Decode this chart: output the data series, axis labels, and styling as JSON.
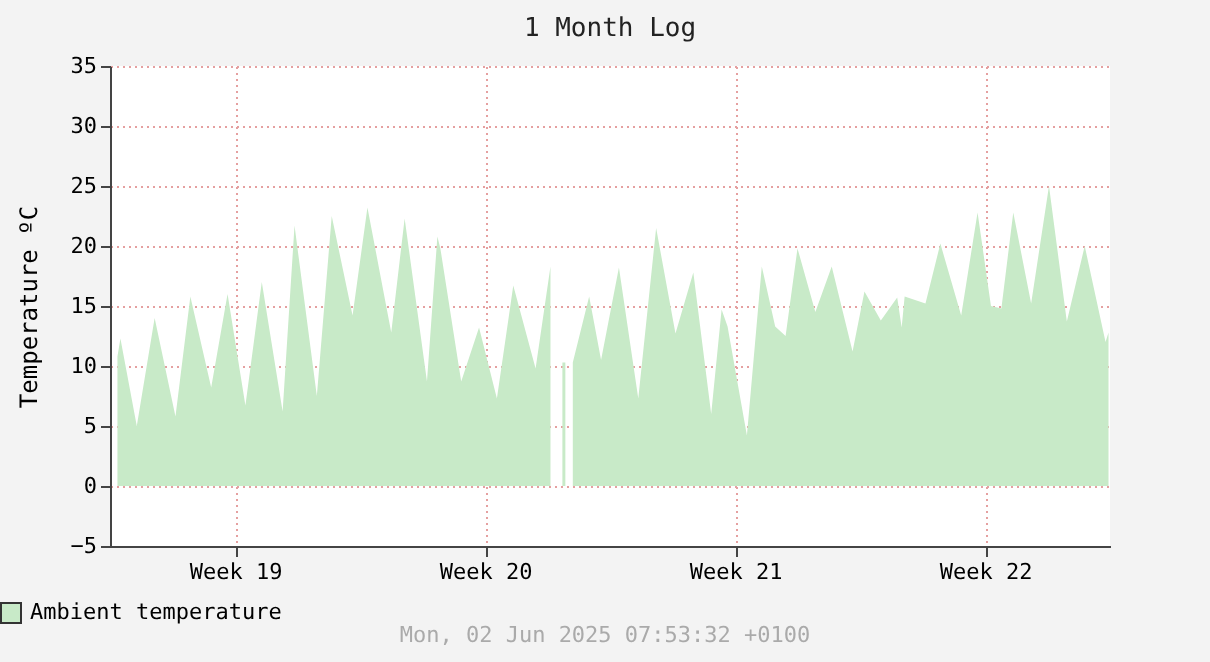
{
  "chart_data": {
    "type": "area",
    "title": "1 Month Log",
    "ylabel": "Temperature ºC",
    "annotations": [
      "Mon, 02 Jun 2025 07:53:32 +0100"
    ],
    "x": [
      "2025-05-05T05:00",
      "2025-05-05T07:00",
      "2025-05-05T18:00",
      "2025-05-06T06:00",
      "2025-05-06T20:00",
      "2025-05-07T06:00",
      "2025-05-07T20:00",
      "2025-05-08T07:00",
      "2025-05-08T19:00",
      "2025-05-09T06:00",
      "2025-05-09T20:00",
      "2025-05-10T04:00",
      "2025-05-10T19:00",
      "2025-05-11T05:00",
      "2025-05-11T19:00",
      "2025-05-12T05:00",
      "2025-05-12T21:00",
      "2025-05-13T06:00",
      "2025-05-13T21:00",
      "2025-05-14T04:00",
      "2025-05-14T06:00",
      "2025-05-14T20:00",
      "2025-05-15T08:00",
      "2025-05-15T20:00",
      "2025-05-16T07:00",
      "2025-05-16T22:00",
      "2025-05-17T08:00",
      "2025-05-17T12:00",
      "2025-05-17T16:00",
      "2025-05-17T18:00",
      "2025-05-17T19:00",
      "2025-05-17T23:00",
      "2025-05-18T10:00",
      "2025-05-18T18:00",
      "2025-05-19T06:00",
      "2025-05-19T19:00",
      "2025-05-20T07:00",
      "2025-05-20T20:00",
      "2025-05-21T08:00",
      "2025-05-21T20:00",
      "2025-05-22T03:00",
      "2025-05-22T07:00",
      "2025-05-22T20:00",
      "2025-05-23T06:00",
      "2025-05-23T15:00",
      "2025-05-23T22:00",
      "2025-05-24T06:00",
      "2025-05-24T18:00",
      "2025-05-25T05:00",
      "2025-05-25T19:00",
      "2025-05-26T03:00",
      "2025-05-26T14:00",
      "2025-05-27T01:00",
      "2025-05-27T04:00",
      "2025-05-27T06:00",
      "2025-05-27T20:00",
      "2025-05-28T06:00",
      "2025-05-28T20:00",
      "2025-05-29T07:00",
      "2025-05-29T16:00",
      "2025-05-29T23:00",
      "2025-05-30T07:00",
      "2025-05-30T19:00",
      "2025-05-31T07:00",
      "2025-05-31T19:00",
      "2025-06-01T07:00",
      "2025-06-01T21:00",
      "2025-06-01T23:00"
    ],
    "series": [
      {
        "name": "Ambient temperature",
        "color": "#c8eac8",
        "values": [
          10.8,
          12.3,
          5.0,
          14.0,
          5.8,
          15.8,
          8.2,
          16.0,
          6.7,
          17.0,
          6.2,
          21.7,
          7.5,
          22.5,
          14.2,
          23.2,
          12.8,
          22.3,
          8.7,
          20.8,
          19.8,
          8.7,
          13.2,
          7.3,
          16.7,
          9.8,
          18.3,
          null,
          10.3,
          10.3,
          null,
          10.3,
          15.8,
          10.5,
          18.2,
          7.3,
          21.5,
          12.7,
          17.8,
          6.0,
          14.7,
          13.3,
          4.2,
          18.3,
          13.3,
          12.5,
          19.8,
          14.5,
          18.3,
          11.2,
          16.2,
          13.8,
          15.7,
          13.2,
          15.8,
          15.2,
          20.2,
          14.2,
          22.8,
          15.0,
          14.8,
          22.8,
          15.2,
          25.0,
          13.7,
          20.0,
          12.0,
          12.8
        ]
      }
    ],
    "xlim": [
      "2025-05-05T00:00",
      "2025-06-02T00:00"
    ],
    "xticks": [
      {
        "value": "2025-05-08T12:00",
        "label": "Week 19"
      },
      {
        "value": "2025-05-15T12:00",
        "label": "Week 20"
      },
      {
        "value": "2025-05-22T12:00",
        "label": "Week 21"
      },
      {
        "value": "2025-05-29T12:00",
        "label": "Week 22"
      }
    ],
    "ylim": [
      -5,
      35
    ],
    "yticks": [
      -5,
      0,
      5,
      10,
      15,
      20,
      25,
      30,
      35
    ],
    "grid": true,
    "legend": "bottom left"
  }
}
